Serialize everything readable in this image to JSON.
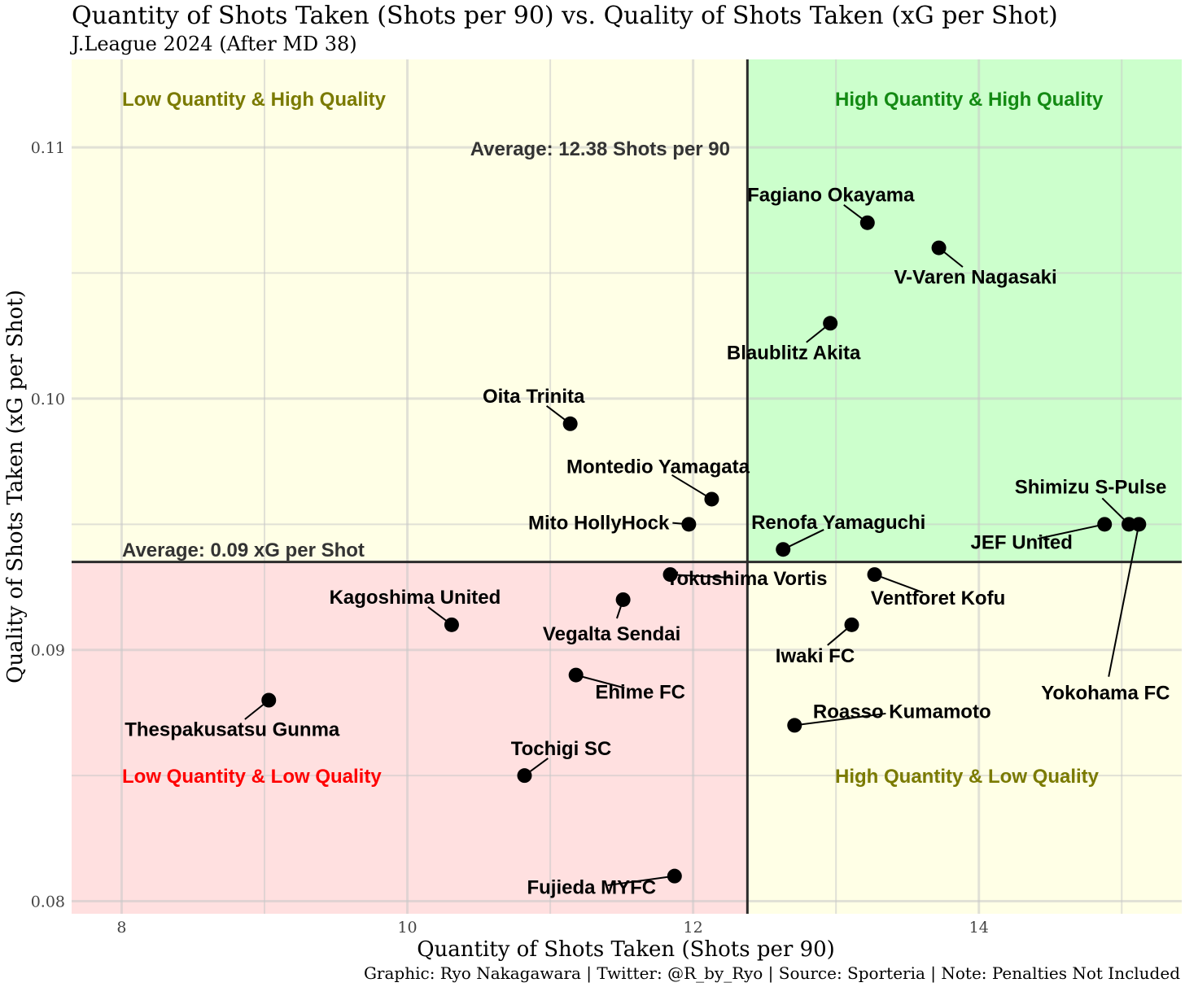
{
  "chart_data": {
    "type": "scatter",
    "title": "Quantity of Shots Taken (Shots per 90) vs. Quality of Shots Taken (xG per Shot)",
    "subtitle": "J.League 2024 (After MD 38)",
    "xlabel": "Quantity of Shots Taken (Shots per 90)",
    "ylabel": "Quality of Shots Taken (xG per Shot)",
    "caption": "Graphic: Ryo Nakagawara | Twitter: @R_by_Ryo | Source: Sporteria | Note: Penalties Not Included",
    "xlim": [
      7.65,
      15.42
    ],
    "ylim": [
      0.0795,
      0.1135
    ],
    "xticks": [
      8,
      10,
      12,
      14
    ],
    "xtick_labels": [
      "8",
      "10",
      "12",
      "14"
    ],
    "yticks": [
      0.08,
      0.09,
      0.1,
      0.11
    ],
    "ytick_labels": [
      "0.08",
      "0.09",
      "0.10",
      "0.11"
    ],
    "x_average": 12.38,
    "y_average": 0.0935,
    "x_average_label": "Average: 12.38 Shots per 90",
    "y_average_label": "Average: 0.09 xG per Shot",
    "quadrants": {
      "top_left": {
        "label": "Low Quantity & High Quality",
        "fill": "#ffffe6",
        "text_color": "#7a7a00"
      },
      "top_right": {
        "label": "High Quantity & High Quality",
        "fill": "#ccffcc",
        "text_color": "#138a13"
      },
      "bottom_left": {
        "label": "Low Quantity & Low Quality",
        "fill": "#ffe0e0",
        "text_color": "#ff0000"
      },
      "bottom_right": {
        "label": "High Quantity & Low Quality",
        "fill": "#ffffe6",
        "text_color": "#7a7a00"
      }
    },
    "points": [
      {
        "team": "Fagiano Okayama",
        "x": 13.22,
        "y": 0.107
      },
      {
        "team": "V-Varen Nagasaki",
        "x": 13.72,
        "y": 0.106
      },
      {
        "team": "Blaublitz Akita",
        "x": 12.96,
        "y": 0.103
      },
      {
        "team": "Oita Trinita",
        "x": 11.14,
        "y": 0.099
      },
      {
        "team": "Montedio Yamagata",
        "x": 12.13,
        "y": 0.096
      },
      {
        "team": "Mito HollyHock",
        "x": 11.97,
        "y": 0.095
      },
      {
        "team": "Renofa Yamaguchi",
        "x": 12.63,
        "y": 0.094
      },
      {
        "team": "Shimizu S-Pulse",
        "x": 15.05,
        "y": 0.095
      },
      {
        "team": "JEF United",
        "x": 14.88,
        "y": 0.095
      },
      {
        "team": "Yokohama FC",
        "x": 15.12,
        "y": 0.095
      },
      {
        "team": "Tokushima Vortis",
        "x": 11.84,
        "y": 0.093
      },
      {
        "team": "Ventforet Kofu",
        "x": 13.27,
        "y": 0.093
      },
      {
        "team": "Kagoshima United",
        "x": 10.31,
        "y": 0.091
      },
      {
        "team": "Vegalta Sendai",
        "x": 11.51,
        "y": 0.092
      },
      {
        "team": "Iwaki FC",
        "x": 13.11,
        "y": 0.091
      },
      {
        "team": "Ehime FC",
        "x": 11.18,
        "y": 0.089
      },
      {
        "team": "Thespakusatsu Gunma",
        "x": 9.03,
        "y": 0.088
      },
      {
        "team": "Roasso Kumamoto",
        "x": 12.71,
        "y": 0.087
      },
      {
        "team": "Tochigi SC",
        "x": 10.82,
        "y": 0.085
      },
      {
        "team": "Fujieda MYFC",
        "x": 11.87,
        "y": 0.081
      }
    ]
  }
}
